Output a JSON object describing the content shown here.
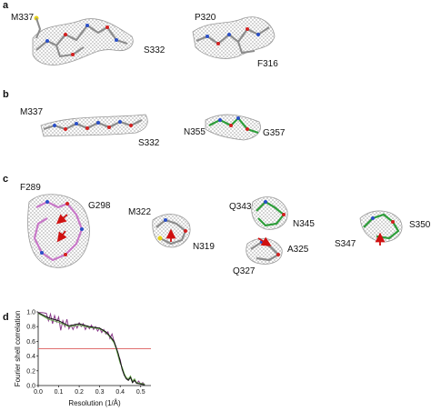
{
  "panels": {
    "a": {
      "letter": "a",
      "labels": [
        "M337",
        "S332",
        "P320",
        "F316"
      ]
    },
    "b": {
      "letter": "b",
      "labels": [
        "M337",
        "S332",
        "N355",
        "G357"
      ]
    },
    "c": {
      "letter": "c",
      "labels": [
        "F289",
        "G298",
        "M322",
        "N319",
        "Q343",
        "N345",
        "A325",
        "Q327",
        "S350",
        "S347"
      ]
    },
    "d": {
      "letter": "d"
    }
  },
  "colors": {
    "density_mesh": "#9a9a9a",
    "carbon_grey": "#8c8c8c",
    "carbon_green": "#2e9e3a",
    "carbon_pink": "#c878c8",
    "nitrogen": "#2a4fc8",
    "oxygen": "#d42020",
    "sulfur": "#e6d21a",
    "arrow": "#d01010",
    "threshold_line": "#e07070"
  },
  "chart_data": {
    "type": "line",
    "title": "",
    "xlabel": "Resolution (1/Å)",
    "ylabel": "Fourier shell correlation",
    "xlim": [
      0.0,
      0.55
    ],
    "ylim": [
      0.0,
      1.0
    ],
    "xticks": [
      "0.0",
      "0.1",
      "0.2",
      "0.3",
      "0.4",
      "0.5"
    ],
    "yticks": [
      "0.0",
      "0.2",
      "0.4",
      "0.6",
      "0.8",
      "1.0"
    ],
    "threshold": 0.5,
    "grid": false,
    "series": [
      {
        "color": "#8a3a8a",
        "x": [
          0.0,
          0.02,
          0.04,
          0.05,
          0.06,
          0.07,
          0.08,
          0.09,
          0.1,
          0.11,
          0.12,
          0.13,
          0.14,
          0.15,
          0.16,
          0.17,
          0.18,
          0.19,
          0.2,
          0.21,
          0.22,
          0.23,
          0.24,
          0.25,
          0.26,
          0.27,
          0.28,
          0.29,
          0.3,
          0.31,
          0.32,
          0.33,
          0.34,
          0.35,
          0.36,
          0.37,
          0.38,
          0.39,
          0.4,
          0.41,
          0.42,
          0.43,
          0.44,
          0.45,
          0.46,
          0.47,
          0.48,
          0.49,
          0.5,
          0.51,
          0.52
        ],
        "y": [
          0.99,
          0.99,
          0.98,
          0.88,
          0.97,
          0.84,
          0.95,
          0.86,
          0.93,
          0.75,
          0.88,
          0.8,
          0.9,
          0.77,
          0.82,
          0.76,
          0.83,
          0.78,
          0.85,
          0.8,
          0.84,
          0.76,
          0.81,
          0.77,
          0.82,
          0.76,
          0.8,
          0.74,
          0.78,
          0.72,
          0.76,
          0.7,
          0.73,
          0.64,
          0.7,
          0.6,
          0.52,
          0.42,
          0.35,
          0.22,
          0.14,
          0.1,
          0.08,
          0.12,
          0.05,
          0.08,
          0.03,
          0.06,
          0.02,
          0.04,
          0.01
        ]
      },
      {
        "color": "#6aa84f",
        "x": [
          0.0,
          0.05,
          0.1,
          0.15,
          0.2,
          0.25,
          0.3,
          0.33,
          0.35,
          0.37,
          0.38,
          0.39,
          0.4,
          0.41,
          0.42,
          0.43,
          0.44,
          0.45,
          0.46,
          0.47,
          0.48,
          0.5,
          0.52
        ],
        "y": [
          0.98,
          0.9,
          0.86,
          0.8,
          0.82,
          0.79,
          0.77,
          0.72,
          0.66,
          0.58,
          0.5,
          0.4,
          0.3,
          0.25,
          0.16,
          0.11,
          0.09,
          0.13,
          0.06,
          0.09,
          0.04,
          0.03,
          0.02
        ]
      },
      {
        "color": "#111111",
        "x": [
          0.0,
          0.05,
          0.1,
          0.15,
          0.2,
          0.25,
          0.3,
          0.33,
          0.35,
          0.37,
          0.38,
          0.39,
          0.4,
          0.41,
          0.42,
          0.43,
          0.44,
          0.45,
          0.46,
          0.47,
          0.48,
          0.5,
          0.52
        ],
        "y": [
          0.99,
          0.92,
          0.88,
          0.81,
          0.84,
          0.8,
          0.78,
          0.73,
          0.67,
          0.6,
          0.52,
          0.44,
          0.33,
          0.22,
          0.14,
          0.09,
          0.07,
          0.11,
          0.04,
          0.07,
          0.03,
          0.02,
          0.01
        ]
      }
    ]
  }
}
